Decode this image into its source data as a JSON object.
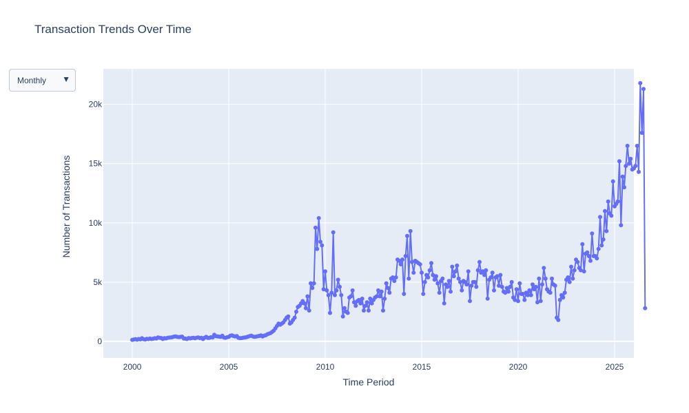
{
  "dropdown": {
    "selected": "Monthly",
    "arrow": "▼"
  },
  "colors": {
    "plot_bg": "#e5ecf6",
    "grid": "#ffffff",
    "series": "#636efa"
  },
  "chart_data": {
    "type": "line",
    "title": "Transaction Trends Over Time",
    "xlabel": "Time Period",
    "ylabel": "Number of Transactions",
    "xlim": [
      1998.5,
      2026.0
    ],
    "ylim": [
      -1400,
      23000
    ],
    "x_ticks": [
      2000,
      2005,
      2010,
      2015,
      2020,
      2025
    ],
    "x_tick_labels": [
      "2000",
      "2005",
      "2010",
      "2015",
      "2020",
      "2025"
    ],
    "y_ticks": [
      0,
      5000,
      10000,
      15000,
      20000
    ],
    "y_tick_labels": [
      "0",
      "5k",
      "10k",
      "15k",
      "20k"
    ],
    "grid": true,
    "markers": true,
    "start": "2000-01",
    "series": [
      {
        "values": [
          120,
          150,
          180,
          140,
          200,
          170,
          260,
          180,
          150,
          210,
          190,
          230,
          200,
          220,
          260,
          240,
          330,
          300,
          280,
          200,
          270,
          250,
          300,
          320,
          330,
          360,
          400,
          420,
          380,
          360,
          380,
          400,
          240,
          230,
          200,
          280,
          250,
          280,
          300,
          260,
          310,
          330,
          280,
          300,
          200,
          310,
          380,
          290,
          300,
          350,
          330,
          550,
          450,
          420,
          400,
          380,
          470,
          320,
          300,
          350,
          380,
          480,
          500,
          440,
          420,
          450,
          300,
          270,
          280,
          310,
          330,
          350,
          400,
          450,
          480,
          420,
          380,
          400,
          430,
          460,
          500,
          420,
          480,
          520,
          600,
          650,
          700,
          800,
          900,
          1100,
          1300,
          1500,
          1400,
          1500,
          1600,
          1800,
          2000,
          2100,
          1500,
          1600,
          1800,
          2000,
          2500,
          2900,
          3000,
          3200,
          3400,
          3200,
          2800,
          3800,
          2600,
          4900,
          4500,
          4900,
          9600,
          7800,
          10400,
          8400,
          8100,
          4400,
          5900,
          4300,
          3900,
          2400,
          4100,
          9200,
          3900,
          4300,
          5200,
          4600,
          3900,
          2100,
          2800,
          2500,
          2400,
          3700,
          3800,
          4300,
          3300,
          3000,
          3400,
          3500,
          3200,
          3600,
          2600,
          3000,
          3300,
          2600,
          3600,
          3200,
          3500,
          3700,
          3800,
          4300,
          3800,
          4200,
          2600,
          3600,
          4900,
          4500,
          4100,
          5300,
          5400,
          5100,
          5400,
          6900,
          6800,
          6500,
          6900,
          4000,
          7200,
          8900,
          5300,
          9300,
          6700,
          5800,
          6800,
          6700,
          6600,
          6500,
          5800,
          4000,
          5000,
          5600,
          5400,
          6000,
          6600,
          5600,
          5200,
          5500,
          4900,
          4100,
          5100,
          5300,
          3200,
          4800,
          4600,
          5100,
          4200,
          6300,
          5500,
          5900,
          6400,
          5300,
          5000,
          4300,
          5100,
          5000,
          4800,
          5900,
          3400,
          4700,
          5000,
          5000,
          4600,
          6000,
          6700,
          5800,
          5900,
          5600,
          6000,
          3600,
          5200,
          5400,
          5800,
          4300,
          5400,
          5500,
          4700,
          5600,
          4600,
          4200,
          4100,
          4500,
          4200,
          4600,
          5000,
          3700,
          3500,
          4400,
          3400,
          4900,
          4000,
          4000,
          3500,
          4100,
          3900,
          4300,
          3900,
          4800,
          4400,
          4600,
          3300,
          5300,
          3400,
          4800,
          6200,
          5300,
          4400,
          4200,
          4100,
          5300,
          4800,
          4700,
          2000,
          1800,
          3500,
          3900,
          3700,
          4100,
          5200,
          5400,
          5000,
          6300,
          5300,
          6000,
          6900,
          6700,
          6200,
          6000,
          8200,
          5900,
          7400,
          7500,
          7200,
          6800,
          9100,
          7200,
          7200,
          7000,
          7800,
          10500,
          8100,
          8600,
          11000,
          9300,
          11800,
          10800,
          10600,
          13500,
          11400,
          11600,
          11800,
          15200,
          9800,
          13900,
          13000,
          14800,
          16500,
          15000,
          15400,
          14500,
          14600,
          14800,
          16500,
          14300,
          21800,
          17600,
          21300,
          2800
        ]
      }
    ]
  }
}
